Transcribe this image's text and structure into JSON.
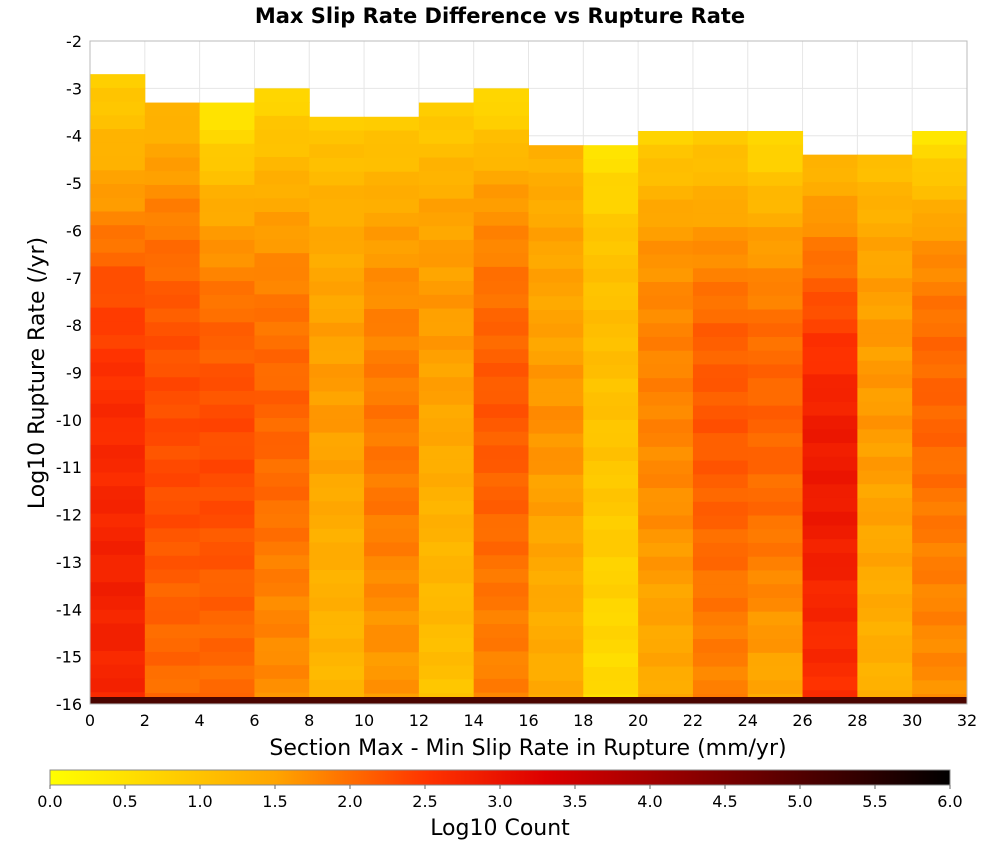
{
  "chart_data": {
    "type": "heatmap",
    "title": "Max Slip Rate Difference vs Rupture Rate",
    "xlabel": "Section Max - Min Slip Rate in Rupture (mm/yr)",
    "ylabel": "Log10 Rupture Rate (/yr)",
    "colorbar_label": "Log10 Count",
    "xlim": [
      0,
      32
    ],
    "ylim": [
      -16,
      -2
    ],
    "x_ticks": [
      "0",
      "2",
      "4",
      "6",
      "8",
      "10",
      "12",
      "14",
      "16",
      "18",
      "20",
      "22",
      "24",
      "26",
      "28",
      "30",
      "32"
    ],
    "y_ticks": [
      "-2",
      "-3",
      "-4",
      "-5",
      "-6",
      "-7",
      "-8",
      "-9",
      "-10",
      "-11",
      "-12",
      "-13",
      "-14",
      "-15",
      "-16"
    ],
    "colorbar_ticks": [
      "0.0",
      "0.5",
      "1.0",
      "1.5",
      "2.0",
      "2.5",
      "3.0",
      "3.5",
      "4.0",
      "4.5",
      "5.0",
      "5.5",
      "6.0"
    ],
    "color_range": [
      0,
      6
    ],
    "colormap": [
      "#ffff00",
      "#ffa500",
      "#ff3300",
      "#dd0000",
      "#000000"
    ],
    "grid": true,
    "bin_width_x": 2,
    "bin_height_y": 0.29,
    "columns": [
      {
        "x0": 0,
        "x1": 2,
        "ytop": -2.7,
        "levels": [
          0.8,
          1.5,
          2.3,
          2.6,
          2.7,
          2.8,
          2.7
        ]
      },
      {
        "x0": 2,
        "x1": 4,
        "ytop": -3.3,
        "levels": [
          1.2,
          1.8,
          2.2,
          2.3,
          2.3,
          2.1,
          2.0
        ]
      },
      {
        "x0": 4,
        "x1": 6,
        "ytop": -3.3,
        "levels": [
          0.4,
          1.4,
          2.0,
          2.3,
          2.3,
          2.1,
          2.0
        ]
      },
      {
        "x0": 6,
        "x1": 8,
        "ytop": -3.0,
        "levels": [
          0.7,
          1.4,
          1.9,
          2.1,
          2.0,
          1.8,
          1.7
        ]
      },
      {
        "x0": 8,
        "x1": 10,
        "ytop": -3.6,
        "levels": [
          0.9,
          1.4,
          1.5,
          1.6,
          1.4,
          1.3,
          1.2
        ]
      },
      {
        "x0": 10,
        "x1": 12,
        "ytop": -3.6,
        "levels": [
          0.9,
          1.5,
          1.8,
          1.9,
          1.9,
          1.7,
          1.6
        ]
      },
      {
        "x0": 12,
        "x1": 14,
        "ytop": -3.3,
        "levels": [
          0.8,
          1.5,
          1.6,
          1.5,
          1.3,
          1.2,
          1.0
        ]
      },
      {
        "x0": 14,
        "x1": 16,
        "ytop": -3.0,
        "levels": [
          0.6,
          1.6,
          2.0,
          2.2,
          2.1,
          1.9,
          1.8
        ]
      },
      {
        "x0": 16,
        "x1": 18,
        "ytop": -4.2,
        "levels": [
          1.3,
          1.5,
          1.5,
          1.7,
          1.5,
          1.4,
          1.4
        ]
      },
      {
        "x0": 18,
        "x1": 20,
        "ytop": -4.2,
        "levels": [
          0.5,
          1.0,
          1.1,
          1.0,
          0.9,
          0.7,
          0.6
        ]
      },
      {
        "x0": 20,
        "x1": 22,
        "ytop": -3.9,
        "levels": [
          0.8,
          1.6,
          1.8,
          1.8,
          1.7,
          1.5,
          1.4
        ]
      },
      {
        "x0": 22,
        "x1": 24,
        "ytop": -3.9,
        "levels": [
          0.9,
          1.6,
          2.1,
          2.2,
          2.1,
          1.9,
          1.8
        ]
      },
      {
        "x0": 24,
        "x1": 26,
        "ytop": -3.9,
        "levels": [
          0.6,
          1.5,
          2.0,
          2.1,
          2.0,
          1.7,
          1.4
        ]
      },
      {
        "x0": 26,
        "x1": 28,
        "ytop": -4.4,
        "levels": [
          1.2,
          1.9,
          2.5,
          2.9,
          2.9,
          2.7,
          2.6
        ]
      },
      {
        "x0": 28,
        "x1": 30,
        "ytop": -4.4,
        "levels": [
          1.1,
          1.5,
          1.6,
          1.6,
          1.5,
          1.4,
          1.3
        ]
      },
      {
        "x0": 30,
        "x1": 32,
        "ytop": -3.9,
        "levels": [
          0.5,
          1.6,
          2.0,
          2.1,
          1.9,
          1.8,
          1.7
        ]
      }
    ],
    "bottom_row": {
      "y": -16,
      "level": 5.0
    }
  }
}
